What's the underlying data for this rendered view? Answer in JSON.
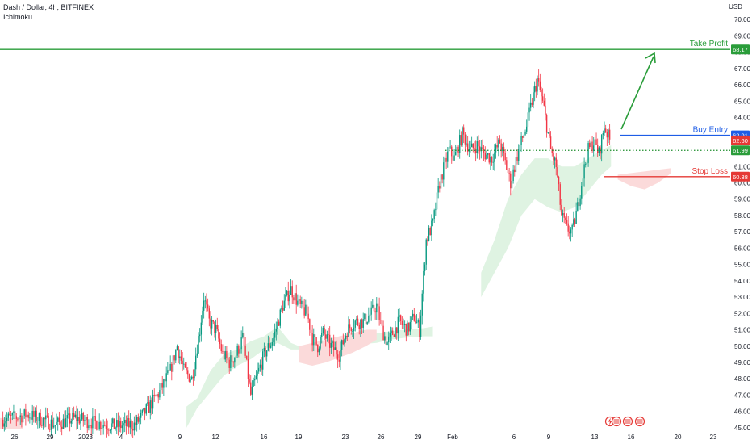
{
  "header": {
    "symbol_line": "Dash / Dollar, 4h, BITFINEX",
    "indicator": "Ichimoku"
  },
  "axis": {
    "currency": "USD"
  },
  "colors": {
    "up": "#089981",
    "down": "#f23645",
    "take_profit": "#2a9d3a",
    "buy_entry": "#1e5de6",
    "stop_loss": "#e53935",
    "dotted": "#1f8f2e",
    "cloud_green": "#dff3e2",
    "cloud_red": "#fbdada",
    "grid_text": "#131722",
    "icon_red": "#e53935"
  },
  "chart_data": {
    "type": "candlestick",
    "y_ticks": [
      "45.00",
      "46.00",
      "47.00",
      "48.00",
      "49.00",
      "50.00",
      "51.00",
      "52.00",
      "53.00",
      "54.00",
      "55.00",
      "56.00",
      "57.00",
      "58.00",
      "59.00",
      "60.00",
      "61.00",
      "62.00",
      "63.00",
      "64.00",
      "65.00",
      "66.00",
      "67.00",
      "68.00",
      "69.00",
      "70.00"
    ],
    "ylim": [
      44.7,
      70.8
    ],
    "x_ticks": [
      "26",
      "29",
      "2023",
      "4",
      "9",
      "12",
      "16",
      "19",
      "23",
      "26",
      "29",
      "Feb",
      "6",
      "9",
      "13",
      "16",
      "20",
      "23"
    ],
    "levels": [
      {
        "label": "Take Profit",
        "value": 68.17,
        "value_label": "68.17"
      },
      {
        "label": "Buy Entry",
        "value": 62.91,
        "value_label": "62.91"
      },
      {
        "label": "",
        "value": 62.6,
        "value_label": "62.60"
      },
      {
        "label": "",
        "value": 61.99,
        "value_label": "61.99"
      },
      {
        "label": "Stop Loss",
        "value": 60.38,
        "value_label": "60.38"
      }
    ],
    "anchors": [
      [
        0,
        45.5
      ],
      [
        20,
        45.8
      ],
      [
        40,
        45.2
      ],
      [
        55,
        45.6
      ],
      [
        70,
        45.3
      ],
      [
        85,
        45.1
      ],
      [
        100,
        45.2
      ],
      [
        112,
        46.5
      ],
      [
        118,
        47.2
      ],
      [
        126,
        48.5
      ],
      [
        131,
        50.0
      ],
      [
        136,
        48.5
      ],
      [
        142,
        48.0
      ],
      [
        148,
        51.0
      ],
      [
        151,
        53.0
      ],
      [
        155,
        51.5
      ],
      [
        160,
        51.0
      ],
      [
        165,
        49.5
      ],
      [
        170,
        49.0
      ],
      [
        175,
        49.5
      ],
      [
        180,
        50.5
      ],
      [
        186,
        47.0
      ],
      [
        190,
        48.0
      ],
      [
        196,
        49.5
      ],
      [
        203,
        50.5
      ],
      [
        210,
        52.5
      ],
      [
        216,
        53.5
      ],
      [
        222,
        52.5
      ],
      [
        228,
        52.0
      ],
      [
        232,
        50.5
      ],
      [
        236,
        50.0
      ],
      [
        240,
        50.8
      ],
      [
        246,
        50.0
      ],
      [
        252,
        49.5
      ],
      [
        258,
        51.0
      ],
      [
        264,
        51.5
      ],
      [
        270,
        51.5
      ],
      [
        276,
        52.0
      ],
      [
        280,
        52.5
      ],
      [
        284,
        51.0
      ],
      [
        288,
        50.2
      ],
      [
        292,
        50.8
      ],
      [
        297,
        51.5
      ],
      [
        303,
        51.0
      ],
      [
        308,
        51.8
      ],
      [
        312,
        51.0
      ],
      [
        317,
        56.5
      ],
      [
        322,
        57.5
      ],
      [
        327,
        60.0
      ],
      [
        334,
        62.0
      ],
      [
        338,
        61.5
      ],
      [
        344,
        63.0
      ],
      [
        350,
        62.0
      ],
      [
        355,
        62.3
      ],
      [
        360,
        61.8
      ],
      [
        366,
        61.5
      ],
      [
        372,
        62.5
      ],
      [
        380,
        60.0
      ],
      [
        386,
        62.0
      ],
      [
        392,
        63.5
      ],
      [
        396,
        65.0
      ],
      [
        400,
        66.3
      ],
      [
        405,
        64.5
      ],
      [
        410,
        62.0
      ],
      [
        414,
        61.0
      ],
      [
        418,
        58.0
      ],
      [
        422,
        57.2
      ],
      [
        426,
        57.0
      ],
      [
        430,
        58.5
      ],
      [
        434,
        60.5
      ],
      [
        438,
        62.0
      ],
      [
        442,
        62.5
      ],
      [
        446,
        61.8
      ],
      [
        450,
        63.5
      ],
      [
        454,
        62.6
      ]
    ],
    "cloud_green": [
      [
        138,
        45.0,
        46.3
      ],
      [
        146,
        46.2,
        46.8
      ],
      [
        156,
        47.2,
        48.5
      ],
      [
        166,
        48.2,
        49.5
      ],
      [
        176,
        48.8,
        49.8
      ],
      [
        186,
        49.2,
        50.3
      ],
      [
        196,
        49.8,
        50.6
      ],
      [
        206,
        50.2,
        51.2
      ],
      [
        216,
        49.8,
        50.2
      ],
      [
        222,
        49.8,
        50.0
      ],
      [
        280,
        50.2,
        50.8
      ],
      [
        290,
        50.4,
        50.9
      ],
      [
        300,
        50.5,
        51.0
      ],
      [
        315,
        50.6,
        51.1
      ],
      [
        322,
        50.6,
        51.2
      ]
    ],
    "cloud_red": [
      [
        222,
        50.0,
        49.0
      ],
      [
        232,
        50.2,
        48.8
      ],
      [
        242,
        50.4,
        49.0
      ],
      [
        252,
        50.6,
        49.3
      ],
      [
        262,
        50.8,
        49.6
      ],
      [
        272,
        51.0,
        50.0
      ],
      [
        280,
        51.0,
        50.4
      ]
    ],
    "cloud_green_2": [
      [
        358,
        53.0,
        54.5
      ],
      [
        368,
        54.5,
        56.5
      ],
      [
        378,
        56.0,
        59.0
      ],
      [
        388,
        58.0,
        60.5
      ],
      [
        398,
        59.0,
        61.5
      ],
      [
        408,
        58.5,
        61.5
      ],
      [
        418,
        58.2,
        61.0
      ],
      [
        428,
        58.5,
        61.0
      ],
      [
        438,
        59.5,
        61.5
      ],
      [
        448,
        60.5,
        62.0
      ],
      [
        455,
        61.0,
        62.3
      ]
    ],
    "cloud_red_2": [
      [
        460,
        60.5,
        60.2
      ],
      [
        470,
        60.6,
        59.8
      ],
      [
        480,
        60.7,
        59.6
      ],
      [
        490,
        60.8,
        60.0
      ],
      [
        500,
        60.9,
        60.6
      ]
    ]
  }
}
